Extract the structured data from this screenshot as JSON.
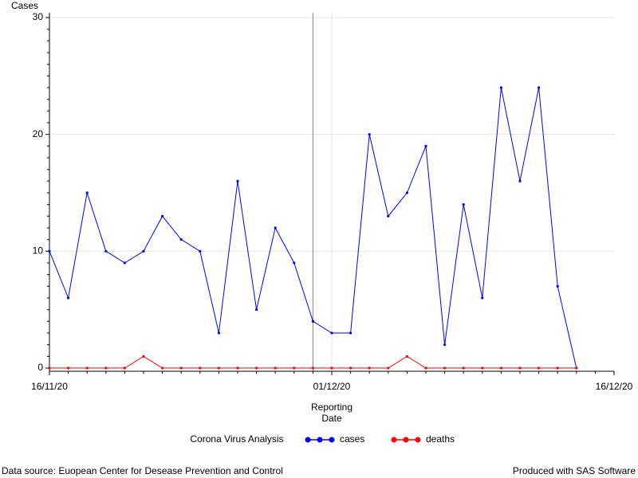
{
  "chart_data": {
    "type": "line",
    "ylabel": "Cases",
    "xlabel": "Reporting Date",
    "legend_title": "Corona Virus Analysis",
    "x": [
      "16/11/20",
      "17/11/20",
      "18/11/20",
      "19/11/20",
      "20/11/20",
      "21/11/20",
      "22/11/20",
      "23/11/20",
      "24/11/20",
      "25/11/20",
      "26/11/20",
      "27/11/20",
      "28/11/20",
      "29/11/20",
      "30/11/20",
      "01/12/20",
      "02/12/20",
      "03/12/20",
      "04/12/20",
      "05/12/20",
      "06/12/20",
      "07/12/20",
      "08/12/20",
      "09/12/20",
      "10/12/20",
      "11/12/20",
      "12/12/20",
      "13/12/20",
      "14/12/20"
    ],
    "series": [
      {
        "name": "cases",
        "color": "#0000ff",
        "values": [
          10,
          6,
          15,
          10,
          9,
          10,
          13,
          11,
          10,
          3,
          16,
          5,
          12,
          9,
          4,
          3,
          3,
          20,
          13,
          15,
          19,
          2,
          14,
          6,
          24,
          16,
          24,
          7,
          0
        ]
      },
      {
        "name": "deaths",
        "color": "#ff0000",
        "values": [
          0,
          0,
          0,
          0,
          0,
          1,
          0,
          0,
          0,
          0,
          0,
          0,
          0,
          0,
          0,
          0,
          0,
          0,
          0,
          1,
          0,
          0,
          0,
          0,
          0,
          0,
          0,
          0,
          0
        ]
      }
    ],
    "xlim": [
      "16/11/20",
      "16/12/20"
    ],
    "xticks": [
      "16/11/20",
      "01/12/20",
      "16/12/20"
    ],
    "ylim": [
      0,
      30
    ],
    "yticks": [
      0,
      10,
      20,
      30
    ],
    "grid": true,
    "reference_x": "30/11/20",
    "footnote_left": "Data source: Euopean Center for Desease Prevention and Control",
    "footnote_right": "Produced with SAS Software"
  }
}
